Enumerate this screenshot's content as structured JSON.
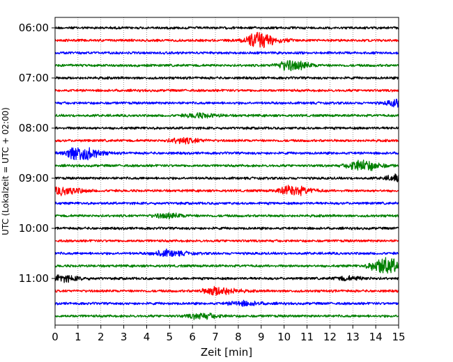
{
  "chart_data": {
    "type": "line",
    "title": "",
    "xlabel": "Zeit  [min]",
    "ylabel": "UTC (Lokalzeit = UTC + 02:00)",
    "xlim": [
      0,
      15
    ],
    "x_ticks": [
      0,
      1,
      2,
      3,
      4,
      5,
      6,
      7,
      8,
      9,
      10,
      11,
      12,
      13,
      14,
      15
    ],
    "y_tick_labels": [
      "06:00",
      "07:00",
      "08:00",
      "09:00",
      "10:00",
      "11:00"
    ],
    "grid": "vertical dotted",
    "trace_colors": [
      "#000000",
      "#ff0000",
      "#0000ff",
      "#008000"
    ],
    "traces": [
      {
        "start": "06:00",
        "color": "#000000",
        "events": []
      },
      {
        "start": "06:15",
        "color": "#ff0000",
        "events": [
          {
            "t": 8.8,
            "amp": 1.0
          }
        ]
      },
      {
        "start": "06:30",
        "color": "#0000ff",
        "events": []
      },
      {
        "start": "06:45",
        "color": "#008000",
        "events": [
          {
            "t": 10.2,
            "amp": 0.6
          }
        ]
      },
      {
        "start": "07:00",
        "color": "#000000",
        "events": []
      },
      {
        "start": "07:15",
        "color": "#ff0000",
        "events": []
      },
      {
        "start": "07:30",
        "color": "#0000ff",
        "events": [
          {
            "t": 15.0,
            "amp": 0.45
          }
        ]
      },
      {
        "start": "07:45",
        "color": "#008000",
        "events": [
          {
            "t": 6.2,
            "amp": 0.25
          }
        ]
      },
      {
        "start": "08:00",
        "color": "#000000",
        "events": []
      },
      {
        "start": "08:15",
        "color": "#ff0000",
        "events": [
          {
            "t": 5.5,
            "amp": 0.3
          }
        ]
      },
      {
        "start": "08:30",
        "color": "#0000ff",
        "events": [
          {
            "t": 1.0,
            "amp": 0.9
          }
        ]
      },
      {
        "start": "08:45",
        "color": "#008000",
        "events": [
          {
            "t": 13.3,
            "amp": 0.65
          }
        ]
      },
      {
        "start": "09:00",
        "color": "#000000",
        "events": [
          {
            "t": 15.0,
            "amp": 0.45
          }
        ]
      },
      {
        "start": "09:15",
        "color": "#ff0000",
        "events": [
          {
            "t": 0.3,
            "amp": 0.45
          },
          {
            "t": 10.3,
            "amp": 0.55
          }
        ]
      },
      {
        "start": "09:30",
        "color": "#0000ff",
        "events": []
      },
      {
        "start": "09:45",
        "color": "#008000",
        "events": [
          {
            "t": 4.8,
            "amp": 0.25
          }
        ]
      },
      {
        "start": "10:00",
        "color": "#000000",
        "events": []
      },
      {
        "start": "10:15",
        "color": "#ff0000",
        "events": []
      },
      {
        "start": "10:30",
        "color": "#0000ff",
        "events": [
          {
            "t": 4.8,
            "amp": 0.35
          }
        ]
      },
      {
        "start": "10:45",
        "color": "#008000",
        "events": [
          {
            "t": 14.3,
            "amp": 1.0
          }
        ]
      },
      {
        "start": "11:00",
        "color": "#000000",
        "events": [
          {
            "t": 0.2,
            "amp": 0.35
          },
          {
            "t": 12.7,
            "amp": 0.2
          }
        ]
      },
      {
        "start": "11:15",
        "color": "#ff0000",
        "events": [
          {
            "t": 7.0,
            "amp": 0.5
          }
        ]
      },
      {
        "start": "11:30",
        "color": "#0000ff",
        "events": [
          {
            "t": 8.1,
            "amp": 0.25
          }
        ]
      },
      {
        "start": "11:45",
        "color": "#008000",
        "events": [
          {
            "t": 6.3,
            "amp": 0.3
          }
        ]
      }
    ]
  }
}
